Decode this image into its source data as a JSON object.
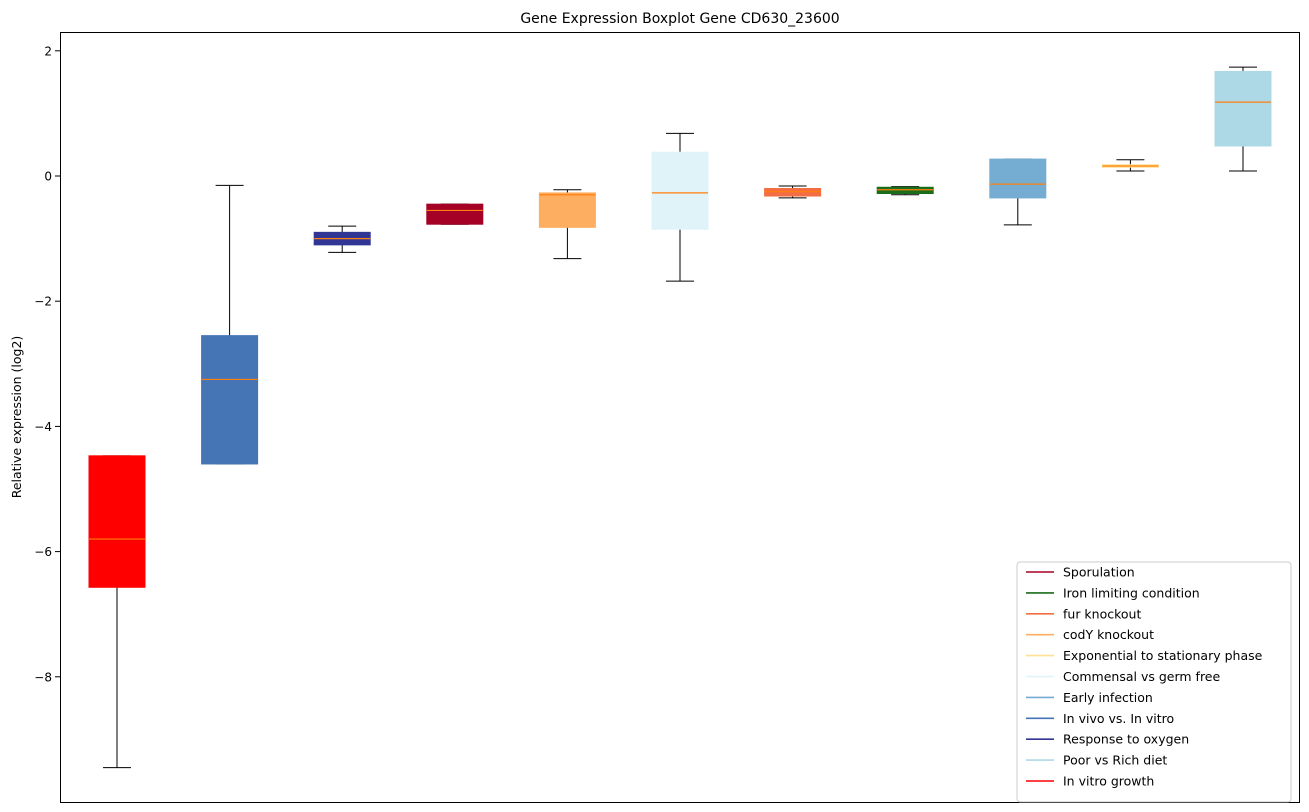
{
  "chart_data": {
    "type": "boxplot",
    "title": "Gene Expression Boxplot Gene CD630_23600",
    "xlabel": "",
    "ylabel": "Relative expression (log2)",
    "ylim": [
      -9.8,
      2.3
    ],
    "yticks": [
      2,
      0,
      -2,
      -4,
      -6,
      -8
    ],
    "ytick_labels": [
      "2",
      "0",
      "−2",
      "−4",
      "−6",
      "−8"
    ],
    "grid": false,
    "legend_position": "lower-right",
    "median_color": "#ff7f0e",
    "boxes": [
      {
        "condition": "In vitro growth",
        "color": "#ff0000",
        "whisker_low": -9.45,
        "q1": -6.57,
        "median": -5.8,
        "q3": -4.47,
        "whisker_high": -4.47
      },
      {
        "condition": "In vivo vs. In vitro",
        "color": "#4575b4",
        "whisker_low": -4.6,
        "q1": -4.6,
        "median": -3.25,
        "q3": -2.55,
        "whisker_high": -0.15
      },
      {
        "condition": "Response to oxygen",
        "color": "#313695",
        "whisker_low": -1.22,
        "q1": -1.1,
        "median": -1.0,
        "q3": -0.9,
        "whisker_high": -0.8
      },
      {
        "condition": "Sporulation",
        "color": "#a50026",
        "whisker_low": -0.77,
        "q1": -0.77,
        "median": -0.55,
        "q3": -0.45,
        "whisker_high": -0.45
      },
      {
        "condition": "codY knockout",
        "color": "#fdae61",
        "whisker_low": -1.32,
        "q1": -0.82,
        "median": -0.3,
        "q3": -0.27,
        "whisker_high": -0.22
      },
      {
        "condition": "Commensal vs germ free",
        "color": "#e0f3f8",
        "whisker_low": -1.68,
        "q1": -0.85,
        "median": -0.27,
        "q3": 0.38,
        "whisker_high": 0.68
      },
      {
        "condition": "fur knockout",
        "color": "#f46d43",
        "whisker_low": -0.35,
        "q1": -0.32,
        "median": -0.25,
        "q3": -0.2,
        "whisker_high": -0.16
      },
      {
        "condition": "Iron limiting condition",
        "color": "#1a6e1a",
        "whisker_low": -0.3,
        "q1": -0.28,
        "median": -0.22,
        "q3": -0.18,
        "whisker_high": -0.17
      },
      {
        "condition": "Early infection",
        "color": "#74add1",
        "whisker_low": -0.78,
        "q1": -0.35,
        "median": -0.13,
        "q3": 0.27,
        "whisker_high": 0.27
      },
      {
        "condition": "Exponential to stationary phase",
        "color": "#fee090",
        "whisker_low": 0.08,
        "q1": 0.14,
        "median": 0.16,
        "q3": 0.18,
        "whisker_high": 0.26
      },
      {
        "condition": "Poor vs Rich diet",
        "color": "#add8e6",
        "whisker_low": 0.08,
        "q1": 0.48,
        "median": 1.18,
        "q3": 1.67,
        "whisker_high": 1.74
      }
    ],
    "legend": [
      {
        "label": "Sporulation",
        "color": "#a50026"
      },
      {
        "label": "Iron limiting condition",
        "color": "#1a6e1a"
      },
      {
        "label": "fur knockout",
        "color": "#f46d43"
      },
      {
        "label": "codY knockout",
        "color": "#fdae61"
      },
      {
        "label": "Exponential to stationary phase",
        "color": "#fee090"
      },
      {
        "label": "Commensal vs germ free",
        "color": "#e0f3f8"
      },
      {
        "label": "Early infection",
        "color": "#74add1"
      },
      {
        "label": "In vivo vs. In vitro",
        "color": "#4575b4"
      },
      {
        "label": "Response to oxygen",
        "color": "#313695"
      },
      {
        "label": "Poor vs Rich diet",
        "color": "#add8e6"
      },
      {
        "label": "In vitro growth",
        "color": "#ff0000"
      }
    ]
  }
}
